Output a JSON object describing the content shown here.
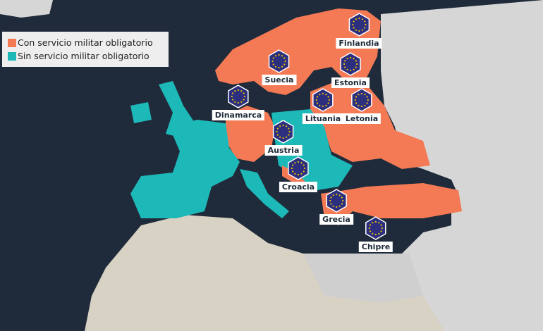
{
  "colors": {
    "sea": "#1f2b3a",
    "mandatory": "#f47a55",
    "voluntary": "#1db8b8",
    "non_eu": "#d6d6d6",
    "africa": "#d8d2c4",
    "eu_blue": "#2b2f7d",
    "star": "#f2c400"
  },
  "legend": [
    {
      "label": "Con servicio militar obligatorio",
      "color": "#f47a55"
    },
    {
      "label": "Sin servicio militar obligatorio",
      "color": "#1db8b8"
    }
  ],
  "markers": [
    {
      "label": "Finlandia",
      "icon": "eu-flag-hexagon-icon"
    },
    {
      "label": "Suecia",
      "icon": "eu-flag-hexagon-icon"
    },
    {
      "label": "Estonia",
      "icon": "eu-flag-hexagon-icon"
    },
    {
      "label": "Dinamarca",
      "icon": "eu-flag-hexagon-icon"
    },
    {
      "label": "Lituania",
      "icon": "eu-flag-hexagon-icon"
    },
    {
      "label": "Letonia",
      "icon": "eu-flag-hexagon-icon"
    },
    {
      "label": "Austria",
      "icon": "eu-flag-hexagon-icon"
    },
    {
      "label": "Croacia",
      "icon": "eu-flag-hexagon-icon"
    },
    {
      "label": "Grecia",
      "icon": "eu-flag-hexagon-icon"
    },
    {
      "label": "Chipre",
      "icon": "eu-flag-hexagon-icon"
    }
  ]
}
